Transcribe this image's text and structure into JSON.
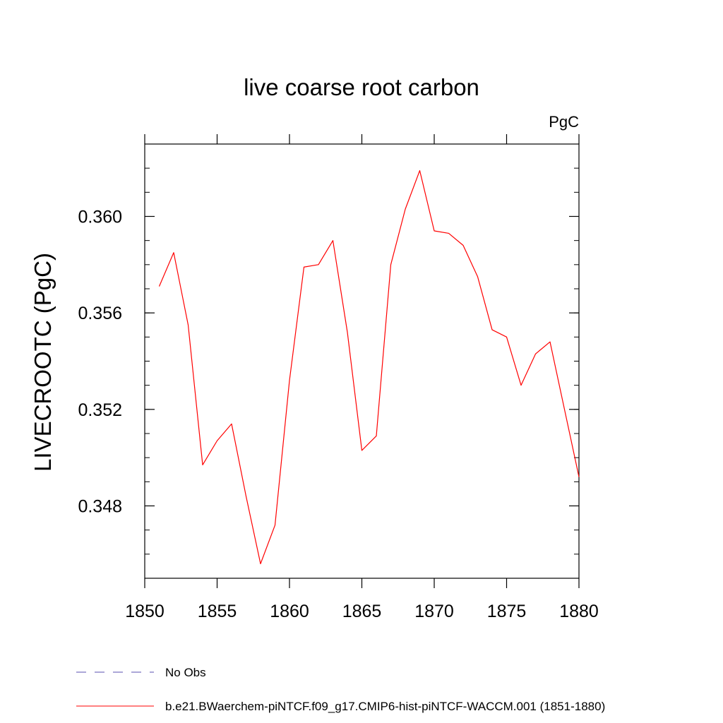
{
  "chart_data": {
    "type": "line",
    "title": "live coarse root carbon",
    "units": "PgC",
    "ylabel": "LIVECROOTC  (PgC)",
    "xlabel": "",
    "xlim": [
      1850,
      1880
    ],
    "ylim": [
      0.345,
      0.363
    ],
    "x_major_ticks": [
      1850,
      1855,
      1860,
      1865,
      1870,
      1875,
      1880
    ],
    "x_tick_labels": [
      "1850",
      "1855",
      "1860",
      "1865",
      "1870",
      "1875",
      "1880"
    ],
    "y_major_ticks": [
      0.348,
      0.352,
      0.356,
      0.36
    ],
    "y_tick_labels": [
      "0.348",
      "0.352",
      "0.356",
      "0.360"
    ],
    "grid": false,
    "legend_position": "bottom-left",
    "series": [
      {
        "name": "b.e21.BWaerchem-piNTCF.f09_g17.CMIP6-hist-piNTCF-WACCM.001 (1851-1880)",
        "color": "#ff0000",
        "style": "solid",
        "x": [
          1851,
          1852,
          1853,
          1854,
          1855,
          1856,
          1857,
          1858,
          1859,
          1860,
          1861,
          1862,
          1863,
          1864,
          1865,
          1866,
          1867,
          1868,
          1869,
          1870,
          1871,
          1872,
          1873,
          1874,
          1875,
          1876,
          1877,
          1878,
          1879,
          1880
        ],
        "values": [
          0.3571,
          0.3585,
          0.3555,
          0.3497,
          0.3507,
          0.3514,
          0.3484,
          0.3456,
          0.3472,
          0.3532,
          0.3579,
          0.358,
          0.359,
          0.3552,
          0.3503,
          0.3509,
          0.358,
          0.3603,
          0.3619,
          0.3594,
          0.3593,
          0.3588,
          0.3575,
          0.3553,
          0.355,
          0.353,
          0.3543,
          0.3548,
          0.352,
          0.3492
        ]
      }
    ],
    "legend": [
      {
        "label": "No Obs",
        "color": "#5a4fb0",
        "style": "dashed"
      },
      {
        "label": "b.e21.BWaerchem-piNTCF.f09_g17.CMIP6-hist-piNTCF-WACCM.001 (1851-1880)",
        "color": "#ff0000",
        "style": "solid"
      }
    ]
  }
}
